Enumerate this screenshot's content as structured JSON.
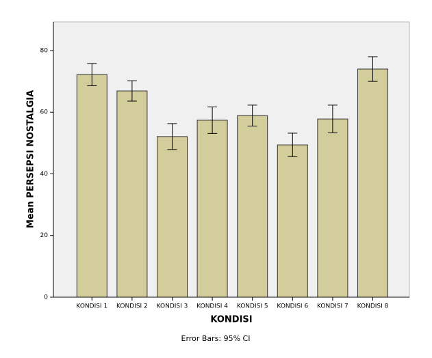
{
  "chart_data": {
    "type": "bar",
    "x_label": "KONDISI",
    "y_label": "Mean PERSEPSI NOSTALGIA",
    "note": "Error Bars: 95% CI",
    "categories": [
      "KONDISI 1",
      "KONDISI 2",
      "KONDISI 3",
      "KONDISI 4",
      "KONDISI 5",
      "KONDISI 6",
      "KONDISI 7",
      "KONDISI 8"
    ],
    "values": [
      72.2,
      66.9,
      52.1,
      57.4,
      58.9,
      49.4,
      57.8,
      74.0
    ],
    "errors": [
      3.6,
      3.3,
      4.2,
      4.3,
      3.4,
      3.8,
      4.5,
      4.0
    ],
    "color": "#d3cd9b",
    "ylim": [
      0,
      89.3
    ],
    "yticks": [
      0,
      20,
      40,
      60,
      80
    ]
  }
}
